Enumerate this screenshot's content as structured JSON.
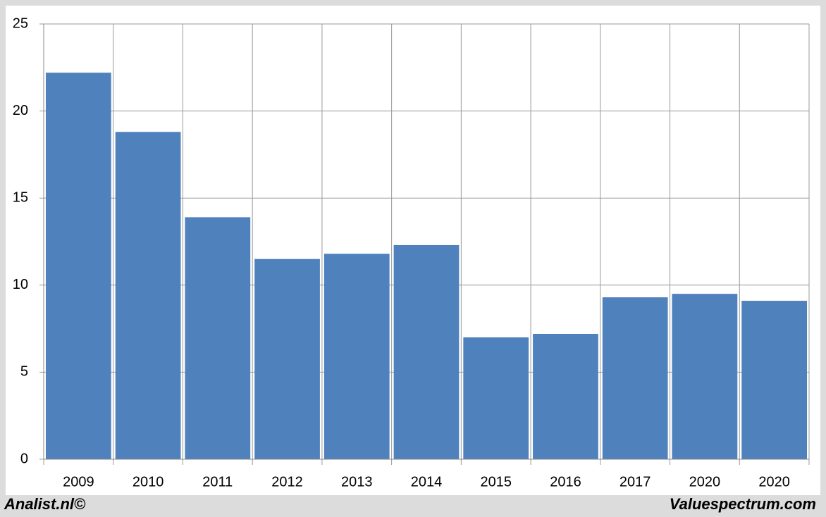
{
  "chart_data": {
    "type": "bar",
    "categories": [
      "2009",
      "2010",
      "2011",
      "2012",
      "2013",
      "2014",
      "2015",
      "2016",
      "2017",
      "2020",
      "2020"
    ],
    "values": [
      22.2,
      18.8,
      13.9,
      11.5,
      11.8,
      12.3,
      7.0,
      7.2,
      9.3,
      9.5,
      9.1
    ],
    "color": "#4f81bd",
    "ylim": [
      0,
      25
    ],
    "yticks": [
      0,
      5,
      10,
      15,
      20,
      25
    ],
    "grid": true,
    "footer_left": "Analist.nl©",
    "footer_right": "Valuespectrum.com"
  }
}
